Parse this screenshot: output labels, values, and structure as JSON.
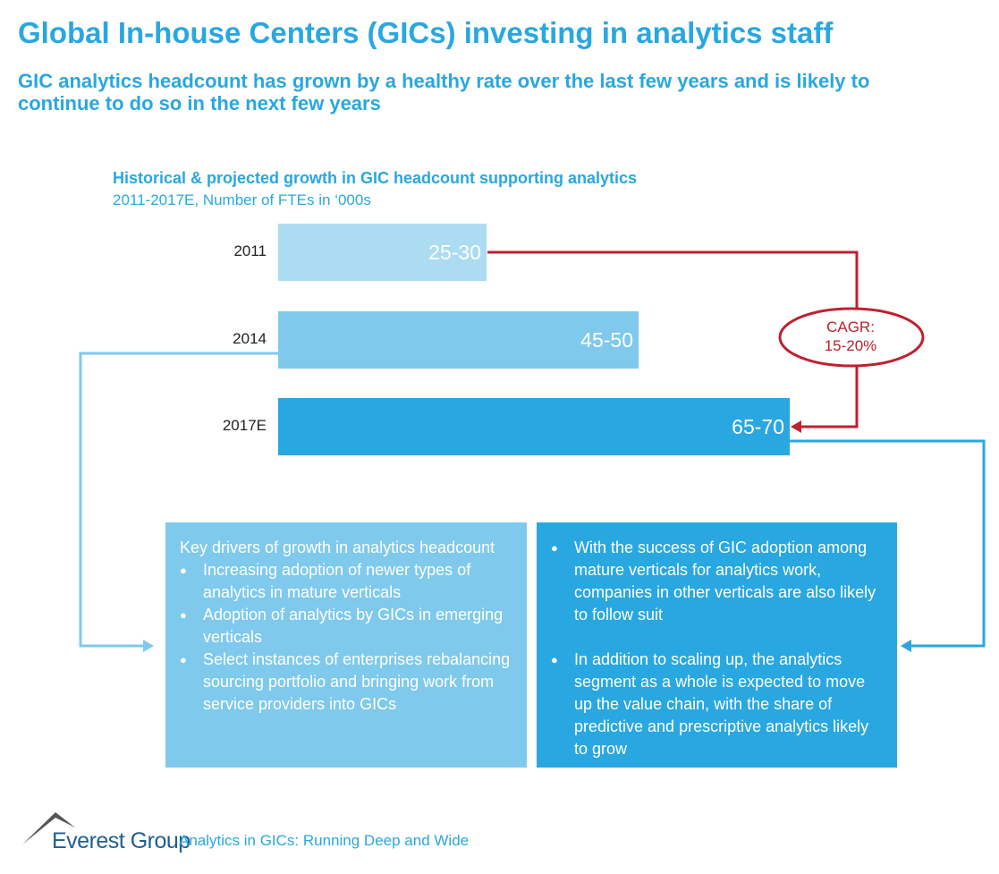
{
  "title": "Global In-house Centers (GICs) investing in analytics staff",
  "subtitle": "GIC analytics headcount has grown by a healthy rate over the last few years and is likely to continue to do so in the next few years",
  "chart_data": {
    "type": "bar",
    "orientation": "horizontal",
    "title": "Historical & projected growth in GIC headcount supporting analytics",
    "subtitle": "2011-2017E, Number of FTEs in ‘000s",
    "categories": [
      "2011",
      "2014",
      "2017E"
    ],
    "values": [
      {
        "low": 25,
        "high": 30
      },
      {
        "low": 45,
        "high": 50
      },
      {
        "low": 65,
        "high": 70
      }
    ],
    "data_labels": [
      "25-30",
      "45-50",
      "65-70"
    ],
    "colors": [
      "#abdcf2",
      "#7fc9ec",
      "#29a7e0"
    ],
    "annotation": {
      "line1": "CAGR:",
      "line2": "15-20%",
      "color": "#c0202f"
    }
  },
  "left_box": {
    "heading": "Key drivers of growth in analytics headcount",
    "items": [
      "Increasing adoption of newer types of analytics in mature verticals",
      "Adoption of analytics by GICs in emerging verticals",
      "Select instances of enterprises rebalancing sourcing portfolio and bringing work from service providers into GICs"
    ]
  },
  "right_box": {
    "items": [
      "With the success of GIC adoption among mature verticals for analytics work, companies in other verticals are also likely to follow suit",
      "In addition to scaling up, the analytics segment as a whole is expected to move up the value chain, with the share of predictive and prescriptive analytics likely to grow"
    ]
  },
  "footer": {
    "logo": "Everest Group",
    "text": "Analytics in GICs: Running Deep and Wide"
  }
}
